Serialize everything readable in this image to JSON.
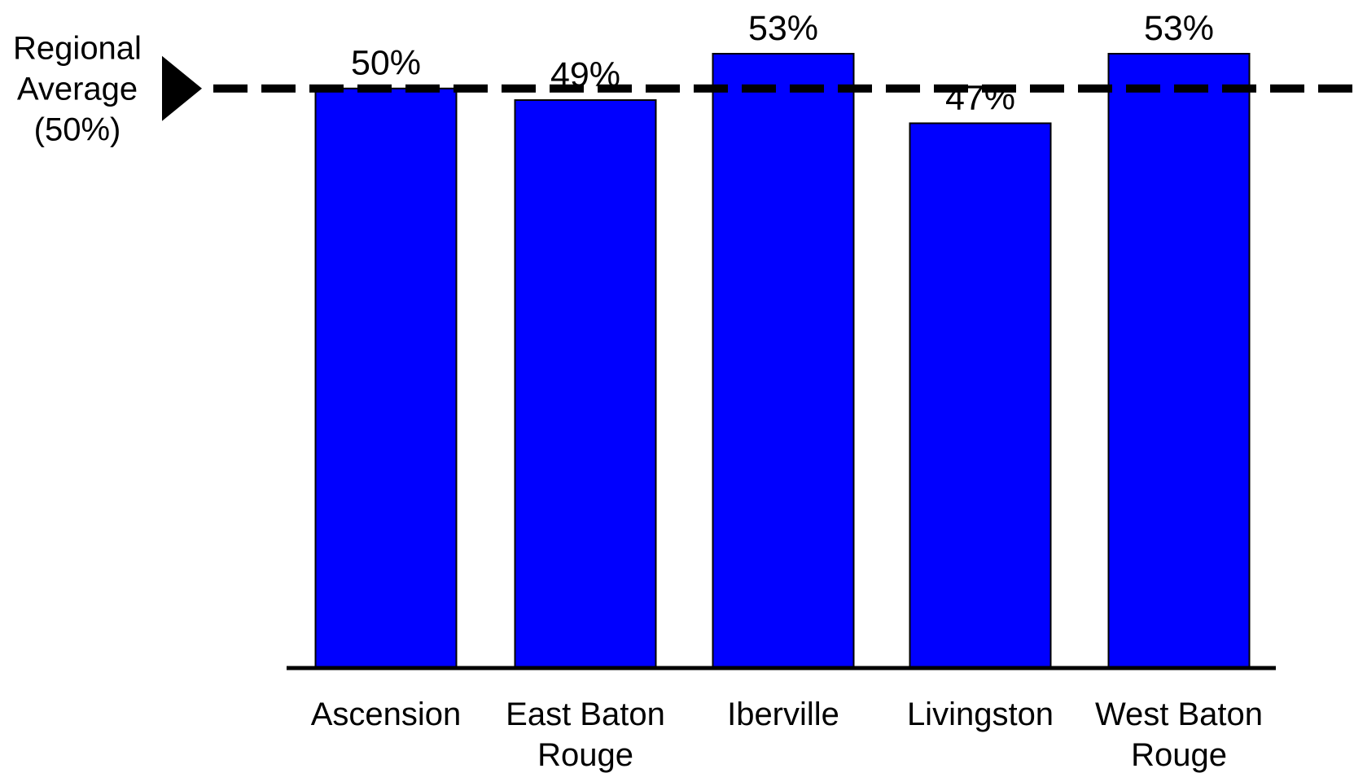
{
  "chart_data": {
    "type": "bar",
    "categories": [
      "Ascension",
      "East Baton Rouge",
      "Iberville",
      "Livingston",
      "West Baton Rouge"
    ],
    "category_lines": [
      [
        "Ascension"
      ],
      [
        "East Baton",
        "Rouge"
      ],
      [
        "Iberville"
      ],
      [
        "Livingston"
      ],
      [
        "West Baton",
        "Rouge"
      ]
    ],
    "values": [
      50,
      49,
      53,
      47,
      53
    ],
    "data_labels": [
      "50%",
      "49%",
      "53%",
      "47%",
      "53%"
    ],
    "ylim": [
      0,
      53
    ],
    "bar_color": "#0000ff",
    "reference_line": {
      "value": 50,
      "label_lines": [
        "Regional",
        "Average",
        "(50%)"
      ],
      "color": "#000000",
      "style": "dashed"
    },
    "grid": false,
    "legend": "none"
  }
}
